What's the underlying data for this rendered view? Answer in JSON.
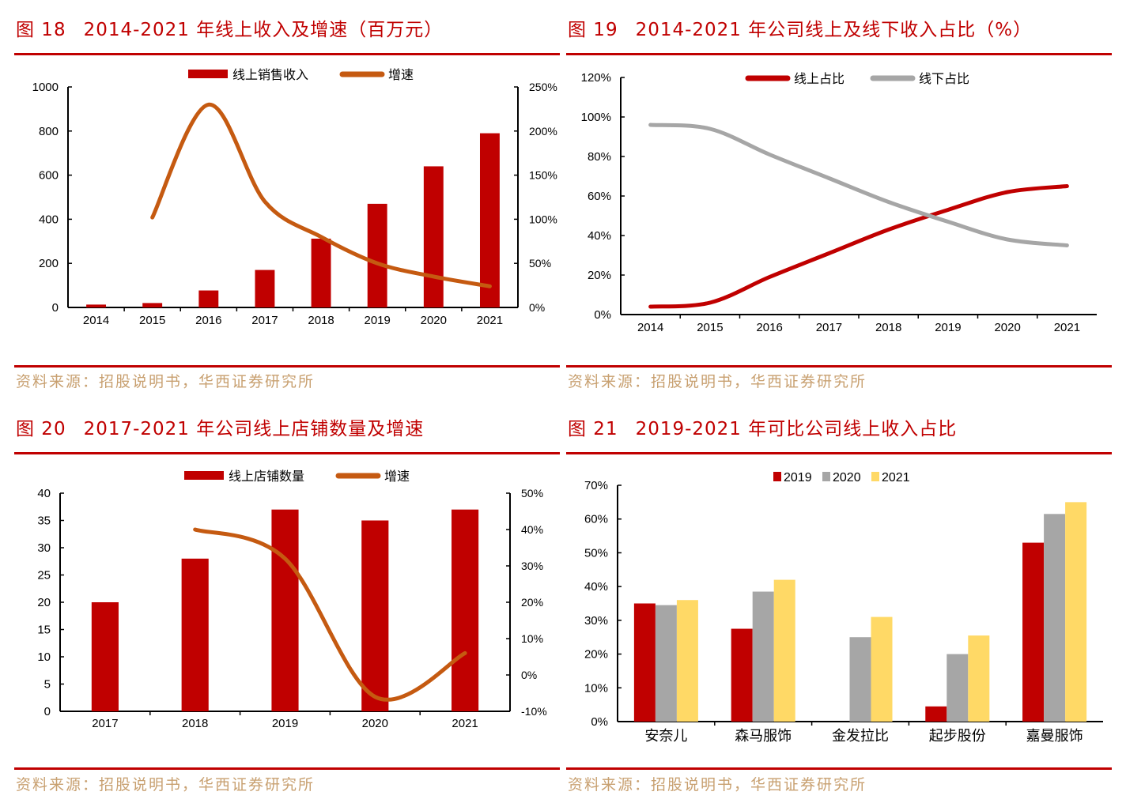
{
  "figures": [
    {
      "number": "图 18",
      "title": "2014-2021 年线上收入及增速（百万元）",
      "source": "资料来源：招股说明书，华西证券研究所"
    },
    {
      "number": "图 19",
      "title": "2014-2021 年公司线上及线下收入占比（%）",
      "source": "资料来源：招股说明书，华西证券研究所"
    },
    {
      "number": "图 20",
      "title": "2017-2021 年公司线上店铺数量及增速",
      "source": "资料来源：招股说明书，华西证券研究所"
    },
    {
      "number": "图 21",
      "title": "2019-2021 年可比公司线上收入占比",
      "source": "资料来源：招股说明书，华西证券研究所"
    }
  ],
  "colors": {
    "red": "#C00000",
    "orange": "#C55A11",
    "gray": "#A6A6A6",
    "yellow": "#FFD966"
  },
  "chart_data": [
    {
      "type": "bar+line",
      "categories": [
        "2014",
        "2015",
        "2016",
        "2017",
        "2018",
        "2019",
        "2020",
        "2021"
      ],
      "series": [
        {
          "name": "线上销售收入",
          "kind": "bar",
          "axis": "left",
          "color": "#C00000",
          "values": [
            13,
            20,
            77,
            170,
            312,
            470,
            640,
            790
          ]
        },
        {
          "name": "增速",
          "kind": "line",
          "axis": "right",
          "color": "#C55A11",
          "values": [
            null,
            102,
            230,
            120,
            80,
            50,
            35,
            24
          ]
        }
      ],
      "ylim": [
        0,
        1000
      ],
      "yticks": [
        "0",
        "200",
        "400",
        "600",
        "800",
        "1000"
      ],
      "y2lim": [
        0,
        250
      ],
      "y2ticks": [
        "0%",
        "50%",
        "100%",
        "150%",
        "200%",
        "250%"
      ],
      "legend": "top",
      "grid": false
    },
    {
      "type": "line",
      "categories": [
        "2014",
        "2015",
        "2016",
        "2017",
        "2018",
        "2019",
        "2020",
        "2021"
      ],
      "series": [
        {
          "name": "线上占比",
          "color": "#C00000",
          "values": [
            4,
            6,
            19,
            31,
            43,
            53,
            62,
            65
          ]
        },
        {
          "name": "线下占比",
          "color": "#A6A6A6",
          "values": [
            96,
            94,
            81,
            69,
            57,
            47,
            38,
            35
          ]
        }
      ],
      "ylim": [
        0,
        120
      ],
      "yticks": [
        "0%",
        "20%",
        "40%",
        "60%",
        "80%",
        "100%",
        "120%"
      ],
      "legend": "top",
      "grid": false
    },
    {
      "type": "bar+line",
      "categories": [
        "2017",
        "2018",
        "2019",
        "2020",
        "2021"
      ],
      "series": [
        {
          "name": "线上店铺数量",
          "kind": "bar",
          "axis": "left",
          "color": "#C00000",
          "values": [
            20,
            28,
            37,
            35,
            37
          ]
        },
        {
          "name": "增速",
          "kind": "line",
          "axis": "right",
          "color": "#C55A11",
          "values": [
            null,
            40,
            32,
            -6,
            6
          ]
        }
      ],
      "ylim": [
        0,
        40
      ],
      "yticks": [
        "0",
        "5",
        "10",
        "15",
        "20",
        "25",
        "30",
        "35",
        "40"
      ],
      "y2lim": [
        -10,
        50
      ],
      "y2ticks": [
        "-10%",
        "0%",
        "10%",
        "20%",
        "30%",
        "40%",
        "50%"
      ],
      "legend": "top",
      "grid": false
    },
    {
      "type": "bar",
      "categories": [
        "安奈儿",
        "森马服饰",
        "金发拉比",
        "起步股份",
        "嘉曼服饰"
      ],
      "series": [
        {
          "name": "2019",
          "color": "#C00000",
          "values": [
            35,
            27.5,
            null,
            4.5,
            53
          ]
        },
        {
          "name": "2020",
          "color": "#A6A6A6",
          "values": [
            34.5,
            38.5,
            25,
            20,
            61.5
          ]
        },
        {
          "name": "2021",
          "color": "#FFD966",
          "values": [
            36,
            42,
            31,
            25.5,
            65
          ]
        }
      ],
      "ylim": [
        0,
        70
      ],
      "yticks": [
        "0%",
        "10%",
        "20%",
        "30%",
        "40%",
        "50%",
        "60%",
        "70%"
      ],
      "legend": "top",
      "grid": false
    }
  ]
}
